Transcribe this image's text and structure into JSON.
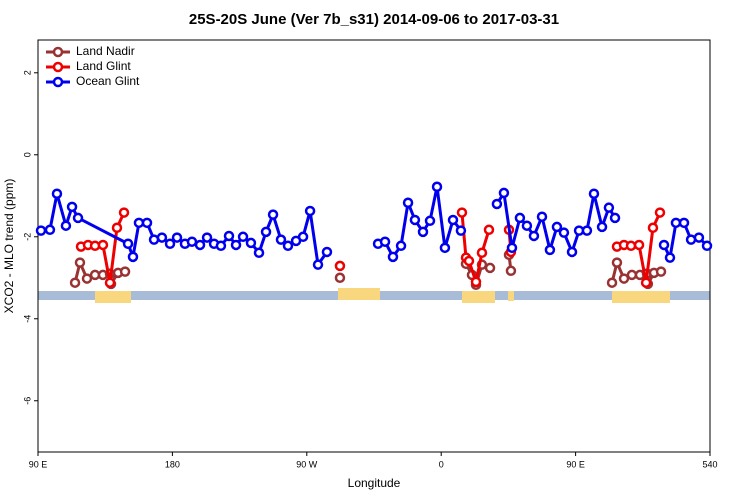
{
  "chart_data": {
    "type": "line",
    "title": "25S-20S June (Ver 7b_s31)   2014-09-06 to 2017-03-31",
    "x_label": "Longitude",
    "y_label": "XCO2 - MLO trend (ppm)",
    "xlim": [
      90,
      540
    ],
    "ylim": [
      -7.25,
      2.8
    ],
    "xticks": [
      {
        "value": 90,
        "label": "90 E"
      },
      180,
      {
        "value": 270,
        "label": "90 W"
      },
      {
        "value": 360,
        "label": "0"
      },
      {
        "value": 450,
        "label": "90 E"
      },
      540
    ],
    "yticks": [
      -6,
      -4,
      -2,
      0,
      2
    ],
    "legend": "top-left",
    "grid": false,
    "series": [
      {
        "name": "Land Nadir",
        "color": "#993333",
        "x": [
          114.8,
          118.1,
          122.8,
          128.2,
          133.5,
          138.2,
          138.9,
          143.6,
          148.3,
          null,
          292.2,
          null,
          376.6,
          380.6,
          383.3,
          387.3,
          392.7,
          null,
          405.4,
          406.7,
          null,
          474.4,
          477.7,
          482.4,
          487.7,
          493.1,
          497.8,
          498.4,
          502.5,
          507.2
        ],
        "values": [
          -3.12,
          -2.63,
          -3.02,
          -2.93,
          -2.93,
          -2.9,
          -3.15,
          -2.88,
          -2.85,
          null,
          -3.0,
          null,
          -2.66,
          -2.93,
          -3.17,
          -2.68,
          -2.76,
          null,
          -2.44,
          -2.83,
          null,
          -3.12,
          -2.63,
          -3.02,
          -2.93,
          -2.93,
          -2.9,
          -3.15,
          -2.88,
          -2.85
        ]
      },
      {
        "name": "Land Glint",
        "color": "#ee0000",
        "x": [
          118.8,
          123.5,
          128.2,
          133.5,
          138.2,
          142.9,
          147.6,
          null,
          292.2,
          null,
          373.9,
          376.6,
          378.6,
          383.3,
          387.3,
          392.0,
          null,
          405.4,
          406.7,
          null,
          477.7,
          482.4,
          487.1,
          492.5,
          497.2,
          501.8,
          506.5
        ],
        "values": [
          -2.24,
          -2.2,
          -2.22,
          -2.2,
          -3.12,
          -1.78,
          -1.41,
          null,
          -2.71,
          null,
          -1.41,
          -2.51,
          -2.59,
          -3.1,
          -2.39,
          -1.83,
          null,
          -1.83,
          -2.37,
          null,
          -2.24,
          -2.2,
          -2.22,
          -2.2,
          -3.12,
          -1.78,
          -1.41
        ]
      },
      {
        "name": "Ocean Glint",
        "color": "#0000ee",
        "x": [
          92.0,
          98.0,
          102.7,
          108.7,
          112.8,
          116.8,
          150.3,
          153.6,
          157.6,
          163.0,
          167.7,
          173.0,
          178.4,
          183.1,
          188.4,
          193.1,
          198.5,
          203.2,
          207.9,
          212.5,
          217.9,
          222.6,
          227.3,
          232.6,
          238.0,
          242.7,
          247.4,
          252.7,
          257.4,
          262.8,
          267.5,
          272.2,
          277.5,
          283.5,
          null,
          317.7,
          322.4,
          327.7,
          333.1,
          337.8,
          342.4,
          347.8,
          352.5,
          357.2,
          362.5,
          367.9,
          373.2,
          null,
          397.3,
          402.0,
          407.4,
          412.7,
          417.4,
          422.1,
          427.5,
          432.8,
          437.5,
          442.2,
          447.6,
          452.3,
          457.6,
          462.3,
          467.7,
          472.3,
          476.4,
          null,
          509.2,
          513.2,
          517.2,
          522.6,
          527.3,
          532.6,
          538.0
        ],
        "values": [
          -1.85,
          -1.83,
          -0.95,
          -1.73,
          -1.27,
          -1.54,
          -2.17,
          -2.49,
          -1.66,
          -1.66,
          -2.07,
          -2.02,
          -2.17,
          -2.02,
          -2.17,
          -2.12,
          -2.2,
          -2.02,
          -2.17,
          -2.22,
          -1.98,
          -2.2,
          -2.0,
          -2.15,
          -2.39,
          -1.88,
          -1.46,
          -2.07,
          -2.22,
          -2.1,
          -2.0,
          -1.37,
          -2.68,
          -2.37,
          null,
          -2.17,
          -2.12,
          -2.49,
          -2.22,
          -1.17,
          -1.59,
          -1.88,
          -1.61,
          -0.78,
          -2.27,
          -1.59,
          -1.85,
          null,
          -1.2,
          -0.93,
          -2.27,
          -1.54,
          -1.73,
          -1.98,
          -1.51,
          -2.32,
          -1.76,
          -1.9,
          -2.37,
          -1.85,
          -1.85,
          -0.95,
          -1.76,
          -1.29,
          -1.54,
          null,
          -2.2,
          -2.51,
          -1.66,
          -1.66,
          -2.07,
          -2.02,
          -2.22
        ]
      }
    ]
  }
}
